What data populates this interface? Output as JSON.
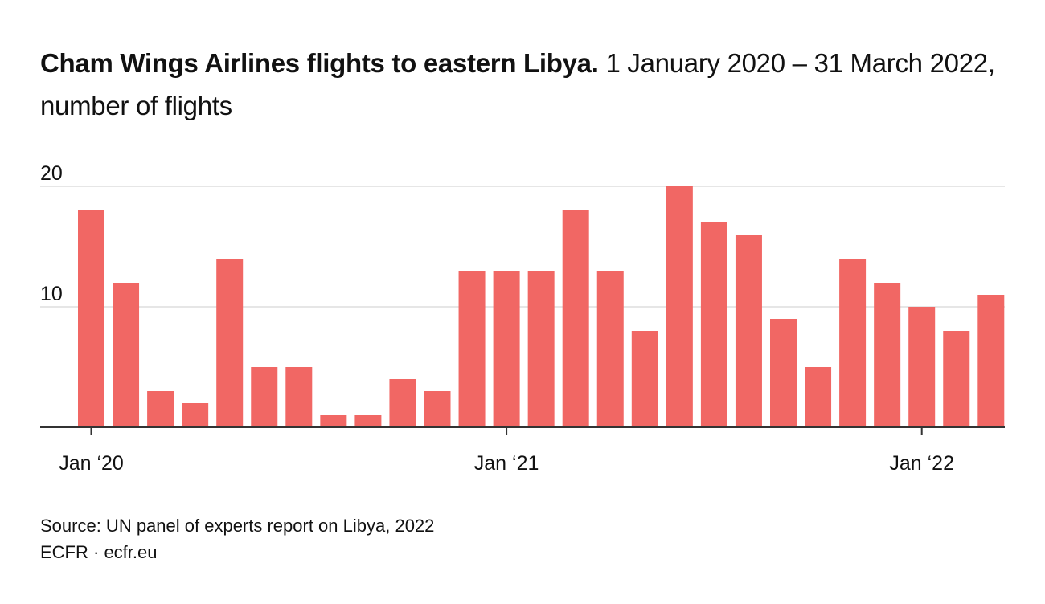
{
  "header": {
    "title_bold": "Cham Wings Airlines flights to eastern Libya.",
    "title_rest": "1 January 2020 – 31 March 2022, number of flights"
  },
  "footer": {
    "source": "Source: UN panel of experts report on Libya, 2022",
    "credit": "ECFR · ecfr.eu"
  },
  "colors": {
    "bar": "#f16764",
    "grid": "#dddddd",
    "axis": "#333333"
  },
  "chart_data": {
    "type": "bar",
    "title": "Cham Wings Airlines flights to eastern Libya.",
    "subtitle": "1 January 2020 – 31 March 2022, number of flights",
    "xlabel": "",
    "ylabel": "",
    "ylim": [
      0,
      20
    ],
    "yticks": [
      10,
      20
    ],
    "grid": true,
    "categories": [
      "Jan 2020",
      "Feb 2020",
      "Mar 2020",
      "Apr 2020",
      "May 2020",
      "Jun 2020",
      "Jul 2020",
      "Aug 2020",
      "Sep 2020",
      "Oct 2020",
      "Nov 2020",
      "Dec 2020",
      "Jan 2021",
      "Feb 2021",
      "Mar 2021",
      "Apr 2021",
      "May 2021",
      "Jun 2021",
      "Jul 2021",
      "Aug 2021",
      "Sep 2021",
      "Oct 2021",
      "Nov 2021",
      "Dec 2021",
      "Jan 2022",
      "Feb 2022",
      "Mar 2022"
    ],
    "values": [
      18,
      12,
      3,
      2,
      14,
      5,
      5,
      1,
      1,
      4,
      3,
      13,
      13,
      13,
      18,
      13,
      8,
      20,
      17,
      16,
      9,
      5,
      14,
      12,
      10,
      8,
      11
    ],
    "xticks": [
      {
        "index": 0,
        "label": "Jan ‘20"
      },
      {
        "index": 12,
        "label": "Jan ‘21"
      },
      {
        "index": 24,
        "label": "Jan ‘22"
      }
    ]
  }
}
